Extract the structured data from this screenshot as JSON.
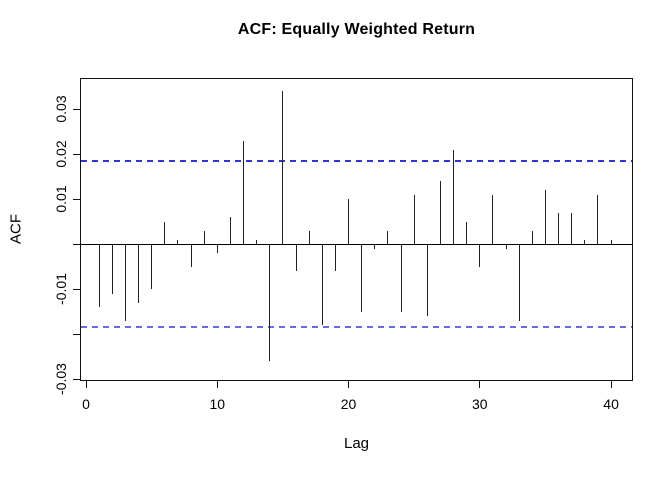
{
  "chart_data": {
    "type": "bar",
    "subtype": "acf-correlogram",
    "title": "ACF: Equally Weighted Return",
    "xlabel": "Lag",
    "ylabel": "ACF",
    "lags": [
      1,
      2,
      3,
      4,
      5,
      6,
      7,
      8,
      9,
      10,
      11,
      12,
      13,
      14,
      15,
      16,
      17,
      18,
      19,
      20,
      21,
      22,
      23,
      24,
      25,
      26,
      27,
      28,
      29,
      30,
      31,
      32,
      33,
      34,
      35,
      36,
      37,
      38,
      39,
      40
    ],
    "values": [
      -0.014,
      -0.011,
      -0.017,
      -0.013,
      -0.01,
      0.005,
      0.001,
      -0.005,
      0.003,
      -0.002,
      0.006,
      0.023,
      0.001,
      -0.026,
      0.034,
      -0.006,
      0.003,
      -0.018,
      -0.006,
      0.01,
      -0.015,
      -0.001,
      0.003,
      -0.015,
      0.011,
      -0.016,
      0.014,
      0.021,
      0.005,
      -0.005,
      0.011,
      -0.001,
      -0.017,
      0.003,
      0.012,
      0.007,
      0.007,
      0.001,
      0.011,
      0.001
    ],
    "confidence_bounds": {
      "upper": 0.0184,
      "lower": -0.0184,
      "line_style": "dashed"
    },
    "x_ticks": [
      {
        "value": 0,
        "label": "0"
      },
      {
        "value": 10,
        "label": "10"
      },
      {
        "value": 20,
        "label": "20"
      },
      {
        "value": 30,
        "label": "30"
      },
      {
        "value": 40,
        "label": "40"
      }
    ],
    "y_ticks": [
      {
        "value": -0.03,
        "label": "-0.03"
      },
      {
        "value": -0.02,
        "label": ""
      },
      {
        "value": -0.01,
        "label": "-0.01"
      },
      {
        "value": 0,
        "label": ""
      },
      {
        "value": 0.01,
        "label": "0.01"
      },
      {
        "value": 0.02,
        "label": "0.02"
      },
      {
        "value": 0.03,
        "label": "0.03"
      }
    ],
    "xlim": [
      -0.46,
      41.67
    ],
    "ylim": [
      -0.0304,
      0.0369
    ],
    "grid": false,
    "legend": null,
    "colors": {
      "spike": "#222222",
      "zero_line": "#000000",
      "box_border": "#111111",
      "ci_upper": "#3333d6",
      "ci_lower": "#6b6be0",
      "background": "#ffffff",
      "text": "#000000"
    }
  }
}
